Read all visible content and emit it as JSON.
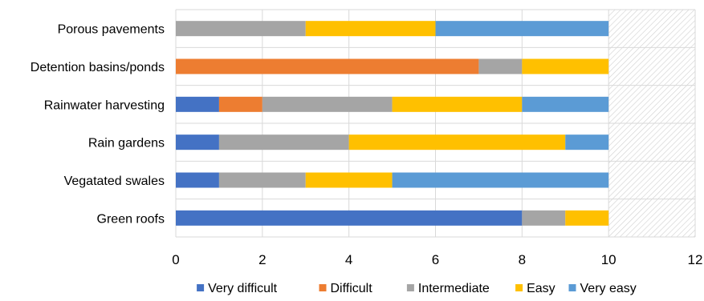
{
  "chart_data": {
    "type": "bar",
    "orientation": "horizontal",
    "stacked": true,
    "categories": [
      "Porous pavements",
      "Detention basins/ponds",
      "Rainwater harvesting",
      "Rain gardens",
      "Vegatated swales",
      "Green roofs"
    ],
    "series": [
      {
        "name": "Very difficult",
        "color": "#4472C4",
        "values": [
          0,
          0,
          1,
          1,
          1,
          8
        ]
      },
      {
        "name": "Difficult",
        "color": "#ED7D31",
        "values": [
          0,
          7,
          1,
          0,
          0,
          0
        ]
      },
      {
        "name": "Intermediate",
        "color": "#A5A5A5",
        "values": [
          3,
          1,
          3,
          3,
          2,
          1
        ]
      },
      {
        "name": "Easy",
        "color": "#FFC000",
        "values": [
          3,
          2,
          3,
          5,
          2,
          1
        ]
      },
      {
        "name": "Very easy",
        "color": "#5B9BD5",
        "values": [
          4,
          0,
          2,
          1,
          5,
          0
        ]
      }
    ],
    "xlim": [
      0,
      12
    ],
    "xticks": [
      "0",
      "2",
      "4",
      "6",
      "8",
      "10",
      "12"
    ],
    "hatched_region": [
      10,
      12
    ],
    "grid": true,
    "legend_position": "bottom"
  }
}
